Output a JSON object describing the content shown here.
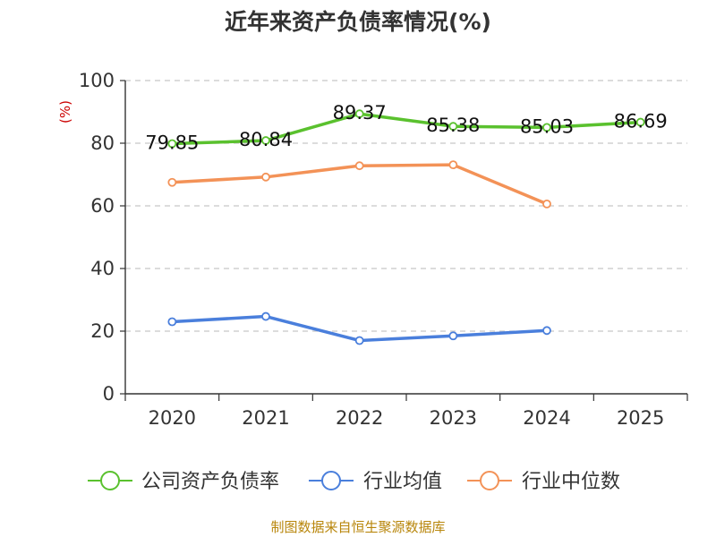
{
  "chart_data": {
    "type": "line",
    "title": "近年来资产负债率情况(%)",
    "ylabel": "(%)",
    "xlabel": "",
    "categories": [
      "2020",
      "2021",
      "2022",
      "2023",
      "2024",
      "2025"
    ],
    "ylim": [
      0,
      100
    ],
    "yticks": [
      0,
      20,
      40,
      60,
      80,
      100
    ],
    "grid": true,
    "legend_position": "bottom",
    "series": [
      {
        "name": "公司资产负债率",
        "color": "#5ac12e",
        "values": [
          79.85,
          80.84,
          89.37,
          85.38,
          85.03,
          86.69
        ],
        "labels": [
          "79.85",
          "80.84",
          "89.37",
          "85.38",
          "85.03",
          "86.69"
        ]
      },
      {
        "name": "行业均值",
        "color": "#4a7fdc",
        "values": [
          23.0,
          24.7,
          17.0,
          18.5,
          20.2,
          null
        ],
        "labels": []
      },
      {
        "name": "行业中位数",
        "color": "#f39257",
        "values": [
          67.5,
          69.2,
          72.8,
          73.1,
          60.6,
          null
        ],
        "labels": []
      }
    ]
  },
  "source": "制图数据来自恒生聚源数据库"
}
